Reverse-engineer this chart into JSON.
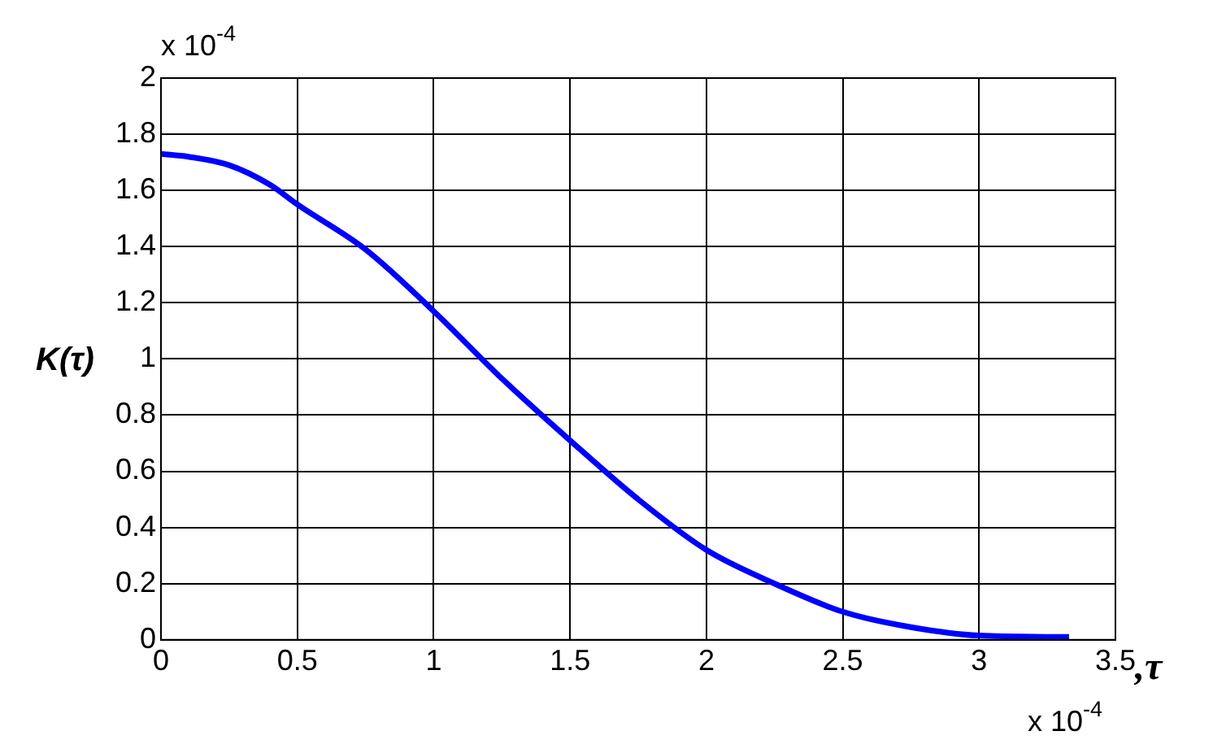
{
  "chart_data": {
    "type": "line",
    "xlabel": ",τ",
    "ylabel": "K(τ)",
    "annotations": [
      "x 10$^{-4}$",
      "x 10$^{-4}$"
    ],
    "x": [
      0,
      0.1,
      0.25,
      0.4,
      0.5,
      0.75,
      1.0,
      1.25,
      1.5,
      1.75,
      2.0,
      2.25,
      2.5,
      2.75,
      3.0,
      3.33
    ],
    "series": [
      {
        "color": "#0000ff",
        "values": [
          1.73,
          1.72,
          1.69,
          1.62,
          1.55,
          1.39,
          1.17,
          0.93,
          0.71,
          0.5,
          0.32,
          0.2,
          0.1,
          0.045,
          0.015,
          0.01
        ]
      }
    ],
    "xlim": [
      0,
      3.5
    ],
    "xticks": [
      0,
      0.5,
      1,
      1.5,
      2,
      2.5,
      3,
      3.5
    ],
    "ylim": [
      0,
      2
    ],
    "yticks": [
      0,
      0.2,
      0.4,
      0.6,
      0.8,
      1,
      1.2,
      1.4,
      1.6,
      1.8,
      2
    ],
    "grid": true,
    "legend": false,
    "marker": "none",
    "line_style": "solid"
  }
}
